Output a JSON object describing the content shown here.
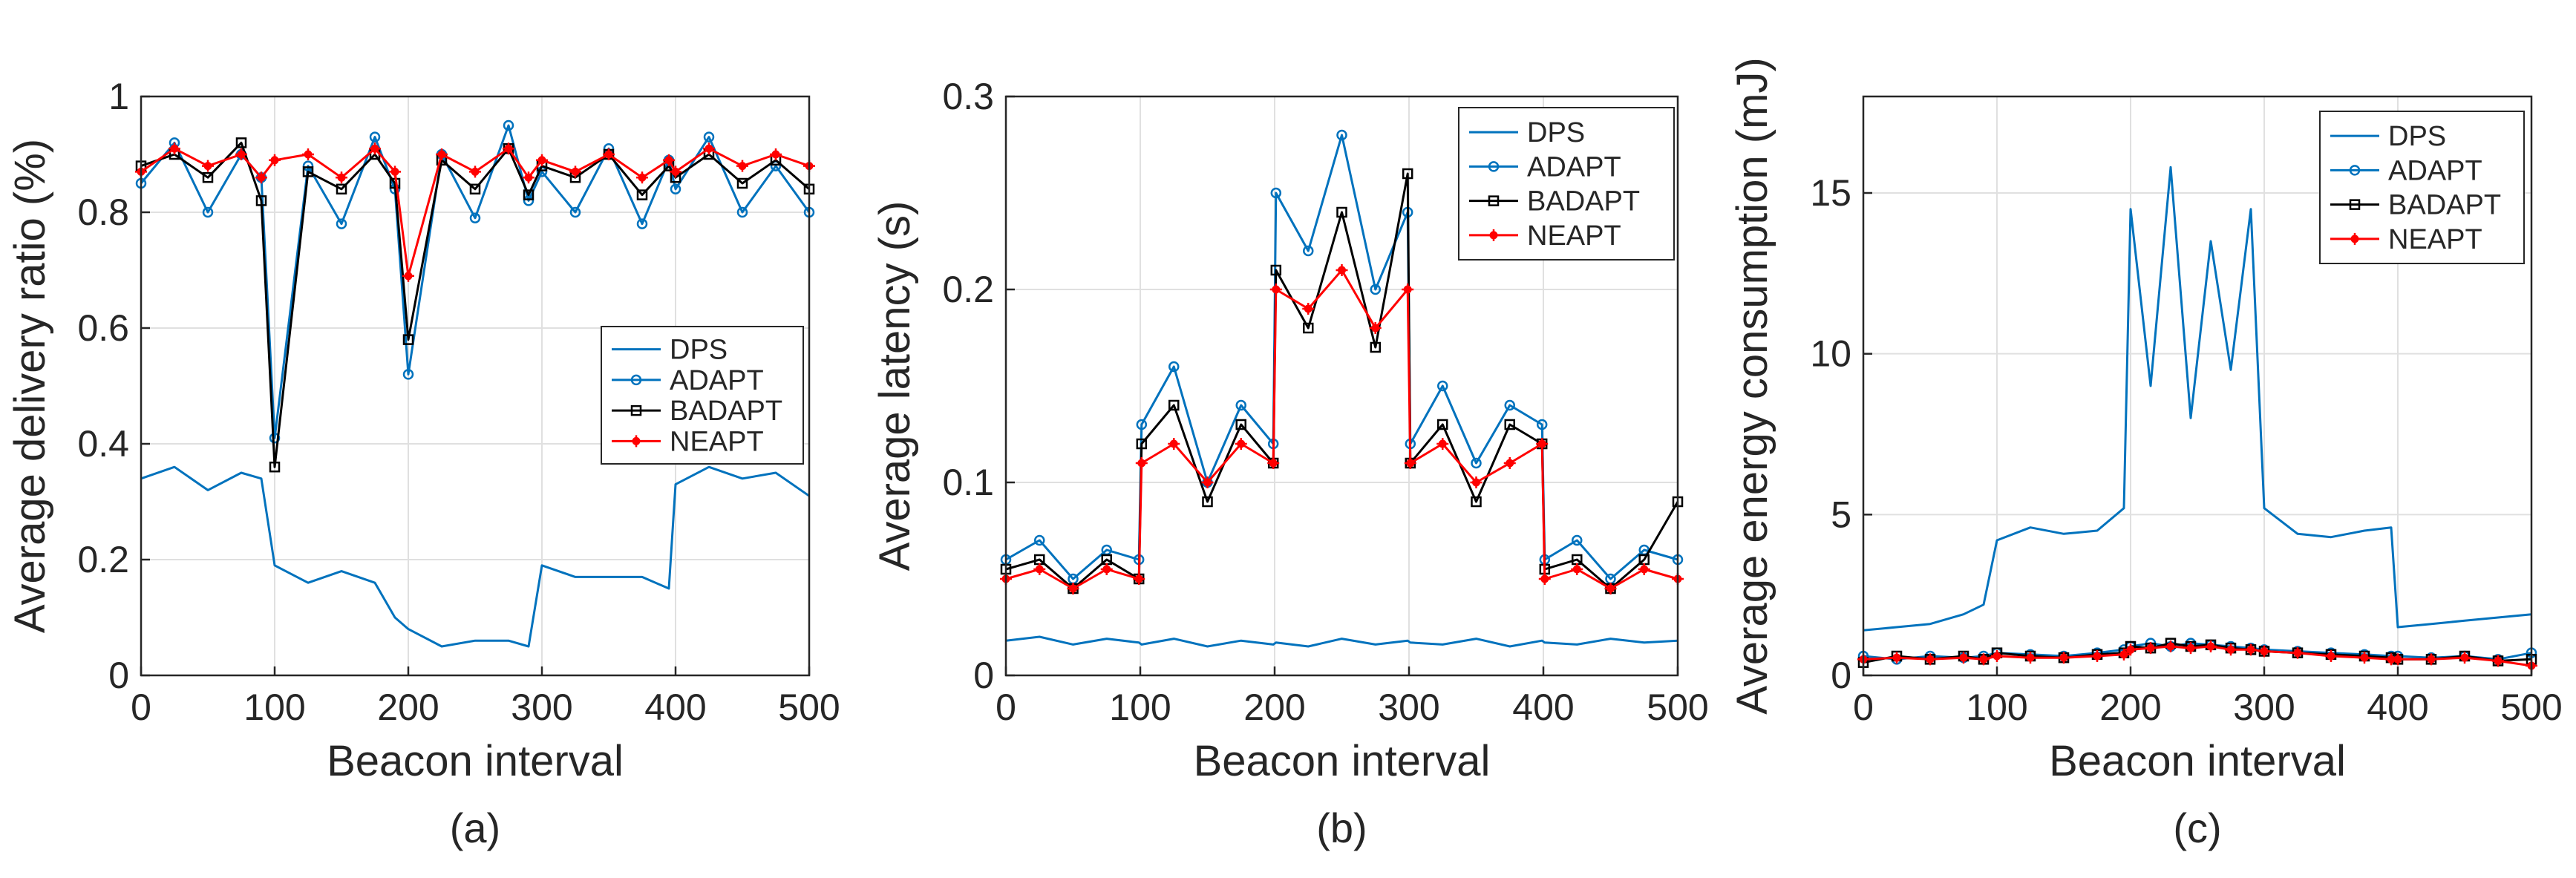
{
  "chart_data": [
    {
      "type": "line",
      "panel": "a",
      "caption": "(a)",
      "xlabel": "Beacon interval",
      "ylabel": "Average delivery ratio (%)",
      "xlim": [
        0,
        500
      ],
      "ylim": [
        0,
        1
      ],
      "xticks": [
        0,
        100,
        200,
        300,
        400,
        500
      ],
      "yticks": [
        0,
        0.2,
        0.4,
        0.6,
        0.8,
        1
      ],
      "ytick_labels": [
        "0",
        "0.2",
        "0.4",
        "0.6",
        "0.8",
        "1"
      ],
      "grid": true,
      "legend_position": "center-right",
      "x": [
        0,
        25,
        50,
        75,
        90,
        100,
        125,
        150,
        175,
        190,
        200,
        225,
        250,
        275,
        290,
        300,
        325,
        350,
        375,
        395,
        400,
        425,
        450,
        475,
        500
      ],
      "series": [
        {
          "name": "DPS",
          "color": "#0072BD",
          "marker": "none",
          "values": [
            0.34,
            0.36,
            0.32,
            0.35,
            0.34,
            0.19,
            0.16,
            0.18,
            0.16,
            0.1,
            0.08,
            0.05,
            0.06,
            0.06,
            0.05,
            0.19,
            0.17,
            0.17,
            0.17,
            0.15,
            0.33,
            0.36,
            0.34,
            0.35,
            0.31
          ]
        },
        {
          "name": "ADAPT",
          "color": "#0072BD",
          "marker": "circle",
          "values": [
            0.85,
            0.92,
            0.8,
            0.9,
            0.86,
            0.41,
            0.88,
            0.78,
            0.93,
            0.84,
            0.52,
            0.9,
            0.79,
            0.95,
            0.82,
            0.87,
            0.8,
            0.91,
            0.78,
            0.89,
            0.84,
            0.93,
            0.8,
            0.88,
            0.8
          ]
        },
        {
          "name": "BADAPT",
          "color": "#000000",
          "marker": "square",
          "values": [
            0.88,
            0.9,
            0.86,
            0.92,
            0.82,
            0.36,
            0.87,
            0.84,
            0.9,
            0.85,
            0.58,
            0.89,
            0.84,
            0.91,
            0.83,
            0.88,
            0.86,
            0.9,
            0.83,
            0.88,
            0.86,
            0.9,
            0.85,
            0.89,
            0.84
          ]
        },
        {
          "name": "NEAPT",
          "color": "#FF0000",
          "marker": "asterisk",
          "values": [
            0.87,
            0.91,
            0.88,
            0.9,
            0.86,
            0.89,
            0.9,
            0.86,
            0.91,
            0.87,
            0.69,
            0.9,
            0.87,
            0.91,
            0.86,
            0.89,
            0.87,
            0.9,
            0.86,
            0.89,
            0.87,
            0.91,
            0.88,
            0.9,
            0.88
          ]
        }
      ]
    },
    {
      "type": "line",
      "panel": "b",
      "caption": "(b)",
      "xlabel": "Beacon interval",
      "ylabel": "Average latency (s)",
      "xlim": [
        0,
        500
      ],
      "ylim": [
        0,
        0.3
      ],
      "xticks": [
        0,
        100,
        200,
        300,
        400,
        500
      ],
      "yticks": [
        0,
        0.1,
        0.2,
        0.3
      ],
      "ytick_labels": [
        "0",
        "0.1",
        "0.2",
        "0.3"
      ],
      "grid": true,
      "legend_position": "top-right",
      "x": [
        0,
        25,
        50,
        75,
        99,
        101,
        125,
        150,
        175,
        199,
        201,
        225,
        250,
        275,
        299,
        301,
        325,
        350,
        375,
        399,
        401,
        425,
        450,
        475,
        500
      ],
      "series": [
        {
          "name": "DPS",
          "color": "#0072BD",
          "marker": "none",
          "values": [
            0.018,
            0.02,
            0.016,
            0.019,
            0.017,
            0.016,
            0.019,
            0.015,
            0.018,
            0.016,
            0.017,
            0.015,
            0.019,
            0.016,
            0.018,
            0.017,
            0.016,
            0.019,
            0.015,
            0.018,
            0.017,
            0.016,
            0.019,
            0.017,
            0.018
          ]
        },
        {
          "name": "ADAPT",
          "color": "#0072BD",
          "marker": "circle",
          "values": [
            0.06,
            0.07,
            0.05,
            0.065,
            0.06,
            0.13,
            0.16,
            0.1,
            0.14,
            0.12,
            0.25,
            0.22,
            0.28,
            0.2,
            0.24,
            0.12,
            0.15,
            0.11,
            0.14,
            0.13,
            0.06,
            0.07,
            0.05,
            0.065,
            0.06
          ]
        },
        {
          "name": "BADAPT",
          "color": "#000000",
          "marker": "square",
          "values": [
            0.055,
            0.06,
            0.045,
            0.06,
            0.05,
            0.12,
            0.14,
            0.09,
            0.13,
            0.11,
            0.21,
            0.18,
            0.24,
            0.17,
            0.26,
            0.11,
            0.13,
            0.09,
            0.13,
            0.12,
            0.055,
            0.06,
            0.045,
            0.06,
            0.09
          ]
        },
        {
          "name": "NEAPT",
          "color": "#FF0000",
          "marker": "asterisk",
          "values": [
            0.05,
            0.055,
            0.045,
            0.055,
            0.05,
            0.11,
            0.12,
            0.1,
            0.12,
            0.11,
            0.2,
            0.19,
            0.21,
            0.18,
            0.2,
            0.11,
            0.12,
            0.1,
            0.11,
            0.12,
            0.05,
            0.055,
            0.045,
            0.055,
            0.05
          ]
        }
      ]
    },
    {
      "type": "line",
      "panel": "c",
      "caption": "(c)",
      "xlabel": "Beacon interval",
      "ylabel": "Average energy consumption (mJ)",
      "xlim": [
        0,
        500
      ],
      "ylim": [
        0,
        18
      ],
      "xticks": [
        0,
        100,
        200,
        300,
        400,
        500
      ],
      "yticks": [
        0,
        5,
        10,
        15
      ],
      "ytick_labels": [
        "0",
        "5",
        "10",
        "15"
      ],
      "grid": true,
      "legend_position": "top-right",
      "x": [
        0,
        25,
        50,
        75,
        90,
        100,
        125,
        150,
        175,
        195,
        200,
        215,
        230,
        245,
        260,
        275,
        290,
        300,
        325,
        350,
        375,
        395,
        400,
        425,
        450,
        475,
        500
      ],
      "series": [
        {
          "name": "DPS",
          "color": "#0072BD",
          "marker": "none",
          "values": [
            1.4,
            1.5,
            1.6,
            1.9,
            2.2,
            4.2,
            4.6,
            4.4,
            4.5,
            5.2,
            14.5,
            9,
            15.8,
            8,
            13.5,
            9.5,
            14.5,
            5.2,
            4.4,
            4.3,
            4.5,
            4.6,
            1.5,
            1.6,
            1.7,
            1.8,
            1.9
          ]
        },
        {
          "name": "ADAPT",
          "color": "#0072BD",
          "marker": "circle",
          "values": [
            0.6,
            0.5,
            0.6,
            0.55,
            0.6,
            0.7,
            0.65,
            0.6,
            0.7,
            0.8,
            0.9,
            1,
            0.9,
            1,
            0.95,
            0.9,
            0.85,
            0.8,
            0.75,
            0.7,
            0.65,
            0.6,
            0.6,
            0.55,
            0.6,
            0.5,
            0.7
          ]
        },
        {
          "name": "BADAPT",
          "color": "#000000",
          "marker": "square",
          "values": [
            0.4,
            0.6,
            0.5,
            0.6,
            0.5,
            0.7,
            0.6,
            0.55,
            0.65,
            0.7,
            0.9,
            0.85,
            1,
            0.9,
            0.95,
            0.85,
            0.8,
            0.75,
            0.7,
            0.65,
            0.6,
            0.55,
            0.5,
            0.5,
            0.6,
            0.45,
            0.5
          ]
        },
        {
          "name": "NEAPT",
          "color": "#FF0000",
          "marker": "asterisk",
          "values": [
            0.5,
            0.55,
            0.5,
            0.55,
            0.5,
            0.6,
            0.55,
            0.55,
            0.6,
            0.65,
            0.8,
            0.85,
            0.9,
            0.85,
            0.9,
            0.8,
            0.8,
            0.75,
            0.7,
            0.6,
            0.55,
            0.5,
            0.5,
            0.5,
            0.55,
            0.45,
            0.3
          ]
        }
      ]
    }
  ]
}
